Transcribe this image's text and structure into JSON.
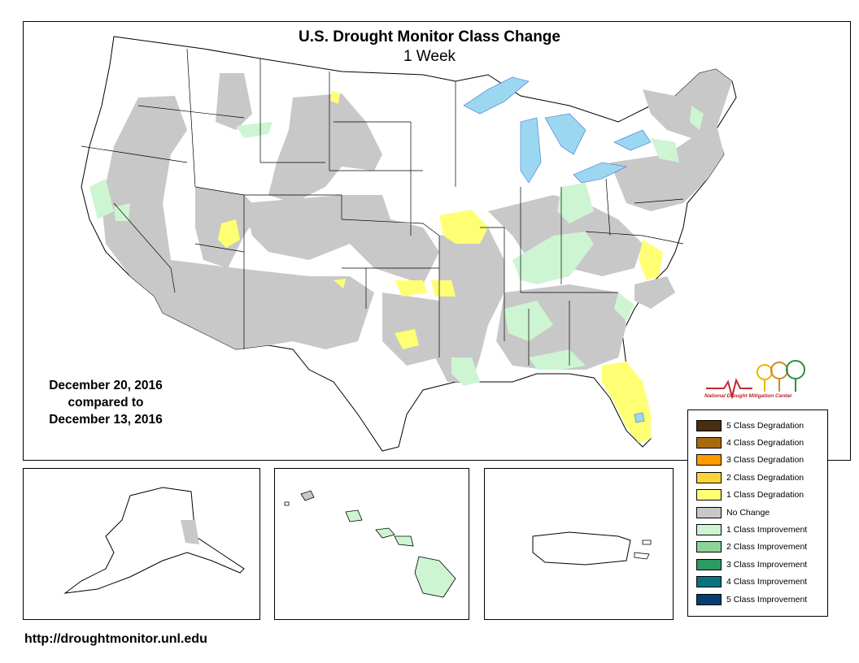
{
  "title": "U.S. Drought Monitor Class Change",
  "subtitle": "1 Week",
  "dates": {
    "current": "December 20, 2016",
    "compared_to": "compared to",
    "previous": "December 13, 2016"
  },
  "url": "http://droughtmonitor.unl.edu",
  "logo_text": "National Drought Mitigation Center",
  "colors": {
    "no_change": "#c8c8c8",
    "degrade_1": "#ffff73",
    "improve_1": "#cdf5d2",
    "water": "#9bd7f0"
  },
  "legend": [
    {
      "label": "5 Class Degradation",
      "color": "#4b2e0d"
    },
    {
      "label": "4 Class Degradation",
      "color": "#a86b0c"
    },
    {
      "label": "3 Class Degradation",
      "color": "#ff9a00"
    },
    {
      "label": "2 Class Degradation",
      "color": "#ffd23c"
    },
    {
      "label": "1 Class Degradation",
      "color": "#ffff73"
    },
    {
      "label": "No Change",
      "color": "#c8c8c8"
    },
    {
      "label": "1 Class Improvement",
      "color": "#cdf5d2"
    },
    {
      "label": "2 Class Improvement",
      "color": "#8ad49a"
    },
    {
      "label": "3 Class Improvement",
      "color": "#2e9a63"
    },
    {
      "label": "4 Class Improvement",
      "color": "#08737f"
    },
    {
      "label": "5 Class Improvement",
      "color": "#063e73"
    }
  ]
}
